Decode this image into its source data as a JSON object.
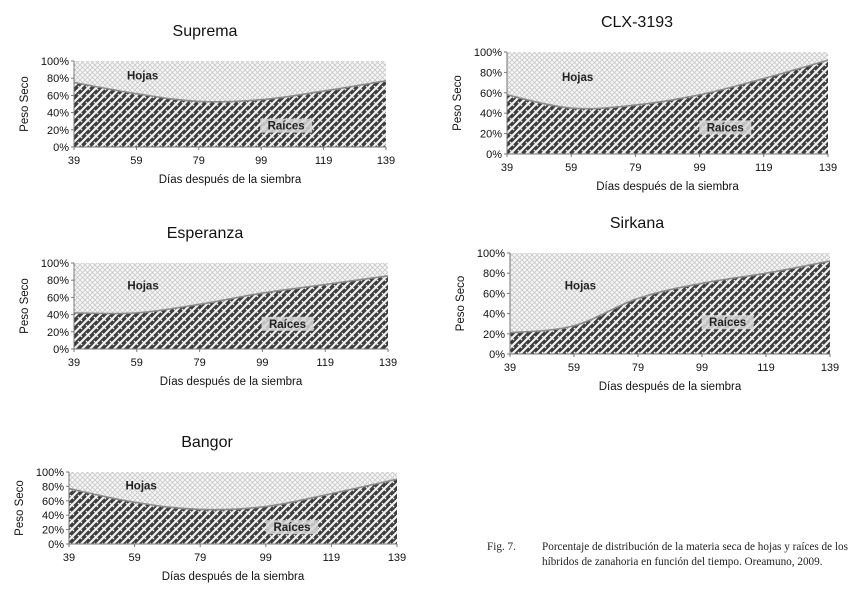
{
  "chart_data": [
    {
      "type": "area",
      "title": "Suprema",
      "xlabel": "Días después de la siembra",
      "ylabel": "Peso Seco",
      "x": [
        39,
        59,
        79,
        99,
        119,
        139
      ],
      "xlim": [
        39,
        139
      ],
      "ylim": [
        0,
        100
      ],
      "y_ticks": [
        "0%",
        "20%",
        "40%",
        "60%",
        "80%",
        "100%"
      ],
      "series": [
        {
          "name": "Raíces",
          "values": [
            75,
            62,
            53,
            55,
            65,
            77
          ]
        },
        {
          "name": "Hojas",
          "values": [
            25,
            38,
            47,
            45,
            35,
            23
          ]
        }
      ]
    },
    {
      "type": "area",
      "title": "CLX-3193",
      "xlabel": "Días después de la siembra",
      "ylabel": "Peso Seco",
      "x": [
        39,
        59,
        79,
        99,
        119,
        139
      ],
      "xlim": [
        39,
        139
      ],
      "ylim": [
        0,
        100
      ],
      "y_ticks": [
        "0%",
        "20%",
        "40%",
        "60%",
        "80%",
        "100%"
      ],
      "series": [
        {
          "name": "Raíces",
          "values": [
            58,
            45,
            48,
            58,
            74,
            92
          ]
        },
        {
          "name": "Hojas",
          "values": [
            42,
            55,
            52,
            42,
            26,
            8
          ]
        }
      ]
    },
    {
      "type": "area",
      "title": "Esperanza",
      "xlabel": "Días después de la siembra",
      "ylabel": "Peso Seco",
      "x": [
        39,
        59,
        79,
        99,
        119,
        139
      ],
      "xlim": [
        39,
        139
      ],
      "ylim": [
        0,
        100
      ],
      "y_ticks": [
        "0%",
        "20%",
        "40%",
        "60%",
        "80%",
        "100%"
      ],
      "series": [
        {
          "name": "Raíces",
          "values": [
            42,
            42,
            52,
            65,
            75,
            85
          ]
        },
        {
          "name": "Hojas",
          "values": [
            58,
            58,
            48,
            35,
            25,
            15
          ]
        }
      ]
    },
    {
      "type": "area",
      "title": "Sirkana",
      "xlabel": "Días después de la siembra",
      "ylabel": "Peso Seco",
      "x": [
        39,
        59,
        79,
        99,
        119,
        139
      ],
      "xlim": [
        39,
        139
      ],
      "ylim": [
        0,
        100
      ],
      "y_ticks": [
        "0%",
        "20%",
        "40%",
        "60%",
        "80%",
        "100%"
      ],
      "series": [
        {
          "name": "Raíces",
          "values": [
            21,
            28,
            55,
            70,
            80,
            92
          ]
        },
        {
          "name": "Hojas",
          "values": [
            79,
            72,
            45,
            30,
            20,
            8
          ]
        }
      ]
    },
    {
      "type": "area",
      "title": "Bangor",
      "xlabel": "Días después de la siembra",
      "ylabel": "Peso Seco",
      "x": [
        39,
        59,
        79,
        99,
        119,
        139
      ],
      "xlim": [
        39,
        139
      ],
      "ylim": [
        0,
        100
      ],
      "y_ticks": [
        "0%",
        "20%",
        "40%",
        "60%",
        "80%",
        "100%"
      ],
      "series": [
        {
          "name": "Raíces",
          "values": [
            77,
            58,
            48,
            52,
            70,
            90
          ]
        },
        {
          "name": "Hojas",
          "values": [
            23,
            42,
            52,
            48,
            30,
            10
          ]
        }
      ]
    }
  ],
  "caption": {
    "fig": "Fig. 7.",
    "text": "Porcentaje de distribución de la materia seca de hojas y raíces de los híbridos de zanahoria en función del tiempo. Oreamuno, 2009."
  }
}
